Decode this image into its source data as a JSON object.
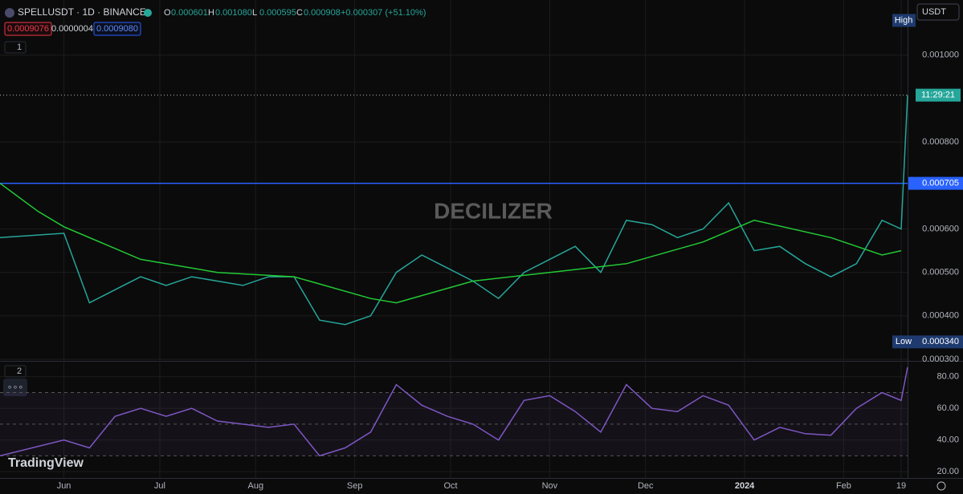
{
  "header": {
    "symbol": "SPELLUSDT · 1D · BINANCE",
    "ohlc": [
      {
        "key": "O",
        "value": "0.000601"
      },
      {
        "key": "H",
        "value": "0.001080"
      },
      {
        "key": "L",
        "value": "0.000595"
      },
      {
        "key": "C",
        "value": "0.000908"
      }
    ],
    "change": "+0.000307 (+51.10%)",
    "sell": "0.0009076",
    "spread": "0.0000004",
    "buy": "0.0009080",
    "pane1": "1",
    "pane2": "2",
    "more": "∘∘∘"
  },
  "watermark": "DECILIZER",
  "logo": "TradingView",
  "currency": "USDT",
  "chart_data": [
    {
      "type": "line",
      "name": "price",
      "xlim": [
        -20,
        264
      ],
      "ylim": [
        0.0003,
        0.001127
      ],
      "xticks": [
        {
          "value": 0,
          "label": "Jun"
        },
        {
          "value": 30,
          "label": "Jul"
        },
        {
          "value": 60,
          "label": "Aug"
        },
        {
          "value": 91,
          "label": "Sep"
        },
        {
          "value": 121,
          "label": "Oct"
        },
        {
          "value": 152,
          "label": "Nov"
        },
        {
          "value": 182,
          "label": "Dec"
        },
        {
          "value": 213,
          "label": "2024"
        },
        {
          "value": 244,
          "label": "Feb"
        },
        {
          "value": 262,
          "label": "19"
        }
      ],
      "yticks": [
        {
          "value": 0.0003,
          "label": "0.000300"
        },
        {
          "value": 0.0004,
          "label": "0.000400"
        },
        {
          "value": 0.0005,
          "label": "0.000500"
        },
        {
          "value": 0.0006,
          "label": "0.000600"
        },
        {
          "value": 0.0008,
          "label": "0.000800"
        },
        {
          "value": 0.001,
          "label": "0.001000"
        }
      ],
      "grid": true,
      "series": [
        {
          "name": "Close",
          "color": "#26a69a",
          "x": [
            -20,
            0,
            8,
            16,
            24,
            32,
            40,
            48,
            56,
            64,
            72,
            80,
            88,
            96,
            104,
            112,
            120,
            128,
            136,
            144,
            152,
            160,
            168,
            176,
            184,
            192,
            200,
            208,
            216,
            224,
            232,
            240,
            248,
            256,
            262,
            264
          ],
          "values": [
            0.00058,
            0.00059,
            0.00043,
            0.00046,
            0.00049,
            0.00047,
            0.00049,
            0.00048,
            0.00047,
            0.00049,
            0.00049,
            0.00039,
            0.00038,
            0.0004,
            0.0005,
            0.00054,
            0.00051,
            0.00048,
            0.00044,
            0.0005,
            0.00053,
            0.00056,
            0.0005,
            0.00062,
            0.00061,
            0.00058,
            0.0006,
            0.00066,
            0.00055,
            0.00056,
            0.00052,
            0.00049,
            0.00052,
            0.00062,
            0.0006,
            0.000908
          ]
        },
        {
          "name": "MA",
          "color": "#22c935",
          "x": [
            -20,
            -8,
            0,
            24,
            48,
            72,
            96,
            104,
            128,
            152,
            176,
            200,
            216,
            240,
            256,
            262
          ],
          "values": [
            0.000705,
            0.00064,
            0.000605,
            0.00053,
            0.0005,
            0.00049,
            0.00044,
            0.00043,
            0.00048,
            0.0005,
            0.00052,
            0.00057,
            0.00062,
            0.00058,
            0.00054,
            0.00055
          ]
        }
      ],
      "hline": {
        "value": 0.000705,
        "label": "0.000705"
      },
      "last": {
        "value": 0.000908,
        "label": "11:29:21"
      },
      "high": {
        "value": 0.00108,
        "label": "High"
      },
      "low": {
        "value": 0.00034,
        "label": "Low",
        "price": "0.000340"
      }
    },
    {
      "type": "line",
      "name": "rsi",
      "xlim": [
        -20,
        264
      ],
      "ylim": [
        16,
        89
      ],
      "yticks": [
        {
          "value": 20,
          "label": "20.00"
        },
        {
          "value": 40,
          "label": "40.00"
        },
        {
          "value": 60,
          "label": "60.00"
        },
        {
          "value": 80,
          "label": "80.00"
        }
      ],
      "bands": [
        30,
        50,
        70
      ],
      "series": [
        {
          "name": "RSI",
          "color": "#7e57c2",
          "x": [
            -20,
            0,
            8,
            16,
            24,
            32,
            40,
            48,
            56,
            64,
            72,
            80,
            88,
            96,
            104,
            112,
            120,
            128,
            136,
            144,
            152,
            160,
            168,
            176,
            184,
            192,
            200,
            208,
            216,
            224,
            232,
            240,
            248,
            256,
            262,
            264
          ],
          "values": [
            30,
            40,
            35,
            55,
            60,
            55,
            60,
            52,
            50,
            48,
            50,
            30,
            35,
            45,
            75,
            62,
            55,
            50,
            40,
            65,
            68,
            58,
            45,
            75,
            60,
            58,
            68,
            62,
            40,
            48,
            44,
            43,
            60,
            70,
            65,
            86
          ]
        }
      ]
    }
  ]
}
